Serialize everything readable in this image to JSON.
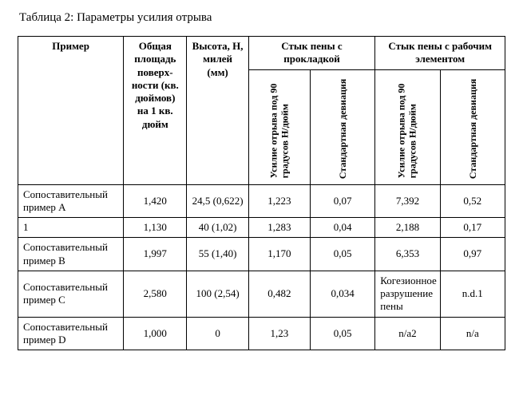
{
  "caption": "Таблица 2: Параметры усилия отрыва",
  "headers": {
    "example": "Пример",
    "total_area": "Общая площадь поверх-ности (кв. дюймов) на 1 кв. дюйм",
    "height": "Высота, H, милей (мм)",
    "group_gasket": "Стык пены с прокладкой",
    "group_element": "Стык пены с рабочим элементом",
    "force90_1": "Усилие отрыва под 90 градусов Н/дюйм",
    "stddev_1": "Стандартная девиация",
    "force90_2": "Усилие отрыва под 90 градусов Н/дюйм",
    "stddev_2": "Стандартная девиация"
  },
  "rows": [
    {
      "label": "Сопоставительный пример A",
      "area": "1,420",
      "height": "24,5 (0,622)",
      "f1": "1,223",
      "sd1": "0,07",
      "f2": "7,392",
      "sd2": "0,52"
    },
    {
      "label": "1",
      "area": "1,130",
      "height": "40 (1,02)",
      "f1": "1,283",
      "sd1": "0,04",
      "f2": "2,188",
      "sd2": "0,17"
    },
    {
      "label": "Сопоставительный пример B",
      "area": "1,997",
      "height": "55 (1,40)",
      "f1": "1,170",
      "sd1": "0,05",
      "f2": "6,353",
      "sd2": "0,97"
    },
    {
      "label": "Сопоставительный пример C",
      "area": "2,580",
      "height": "100 (2,54)",
      "f1": "0,482",
      "sd1": "0,034",
      "f2": "Когезионное разрушение пены",
      "sd2": "n.d.1"
    },
    {
      "label": "Сопоставительный пример D",
      "area": "1,000",
      "height": "0",
      "f1": "1,23",
      "sd1": "0,05",
      "f2": "n/a2",
      "sd2": "n/a"
    }
  ]
}
